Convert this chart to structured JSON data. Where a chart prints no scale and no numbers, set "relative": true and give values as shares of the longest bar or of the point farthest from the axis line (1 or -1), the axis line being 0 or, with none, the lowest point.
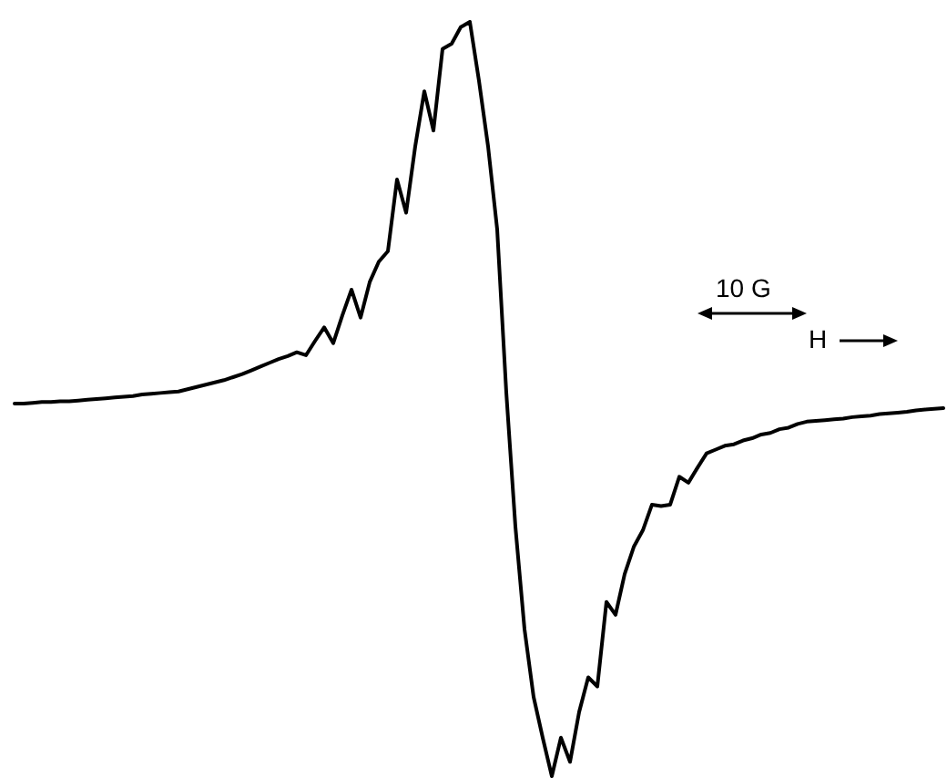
{
  "chart_data": {
    "type": "line",
    "relative": true,
    "marker": "none",
    "line_style": "solid",
    "annotations": [
      "10 G",
      "H"
    ],
    "categories": [
      null,
      null,
      null,
      null,
      null,
      null,
      null,
      null,
      null,
      null,
      null,
      null,
      null,
      null,
      null,
      null,
      null,
      null,
      null,
      null,
      null,
      null,
      null,
      null,
      null,
      null,
      null,
      null,
      null,
      null,
      null,
      null,
      null,
      null,
      null,
      null,
      null,
      null,
      null,
      null,
      null,
      null,
      null,
      null,
      null,
      null,
      null,
      null,
      null,
      null,
      null,
      null,
      null,
      null,
      null,
      null,
      null,
      null,
      null,
      null,
      null,
      null,
      null,
      null,
      null,
      null,
      null,
      null,
      null,
      null,
      null,
      null,
      null,
      null,
      null,
      null,
      null,
      null,
      null,
      null,
      null,
      null,
      null,
      null,
      null,
      null,
      null,
      null,
      null,
      null,
      null,
      null,
      null,
      null,
      null,
      null,
      null,
      null,
      null,
      null,
      null,
      null,
      null
    ],
    "series": [
      {
        "color": "#000000",
        "values": [
          0.494,
          0.494,
          0.495,
          0.496,
          0.496,
          0.497,
          0.497,
          0.498,
          0.499,
          0.5,
          0.501,
          0.502,
          0.503,
          0.504,
          0.506,
          0.507,
          0.508,
          0.509,
          0.51,
          0.513,
          0.516,
          0.519,
          0.522,
          0.525,
          0.529,
          0.533,
          0.538,
          0.543,
          0.548,
          0.553,
          0.557,
          0.562,
          0.558,
          0.577,
          0.595,
          0.574,
          0.611,
          0.645,
          0.608,
          0.655,
          0.682,
          0.696,
          0.791,
          0.747,
          0.835,
          0.908,
          0.856,
          0.964,
          0.971,
          0.993,
          1,
          0.922,
          0.835,
          0.725,
          0.509,
          0.331,
          0.195,
          0.105,
          0.051,
          0,
          0.051,
          0.019,
          0.085,
          0.131,
          0.119,
          0.231,
          0.214,
          0.268,
          0.304,
          0.326,
          0.36,
          0.358,
          0.36,
          0.397,
          0.389,
          0.409,
          0.428,
          0.433,
          0.438,
          0.44,
          0.445,
          0.448,
          0.453,
          0.455,
          0.46,
          0.462,
          0.467,
          0.47,
          0.471,
          0.472,
          0.473,
          0.474,
          0.476,
          0.477,
          0.478,
          0.48,
          0.481,
          0.482,
          0.483,
          0.485,
          0.486,
          0.487,
          0.488
        ]
      }
    ]
  }
}
